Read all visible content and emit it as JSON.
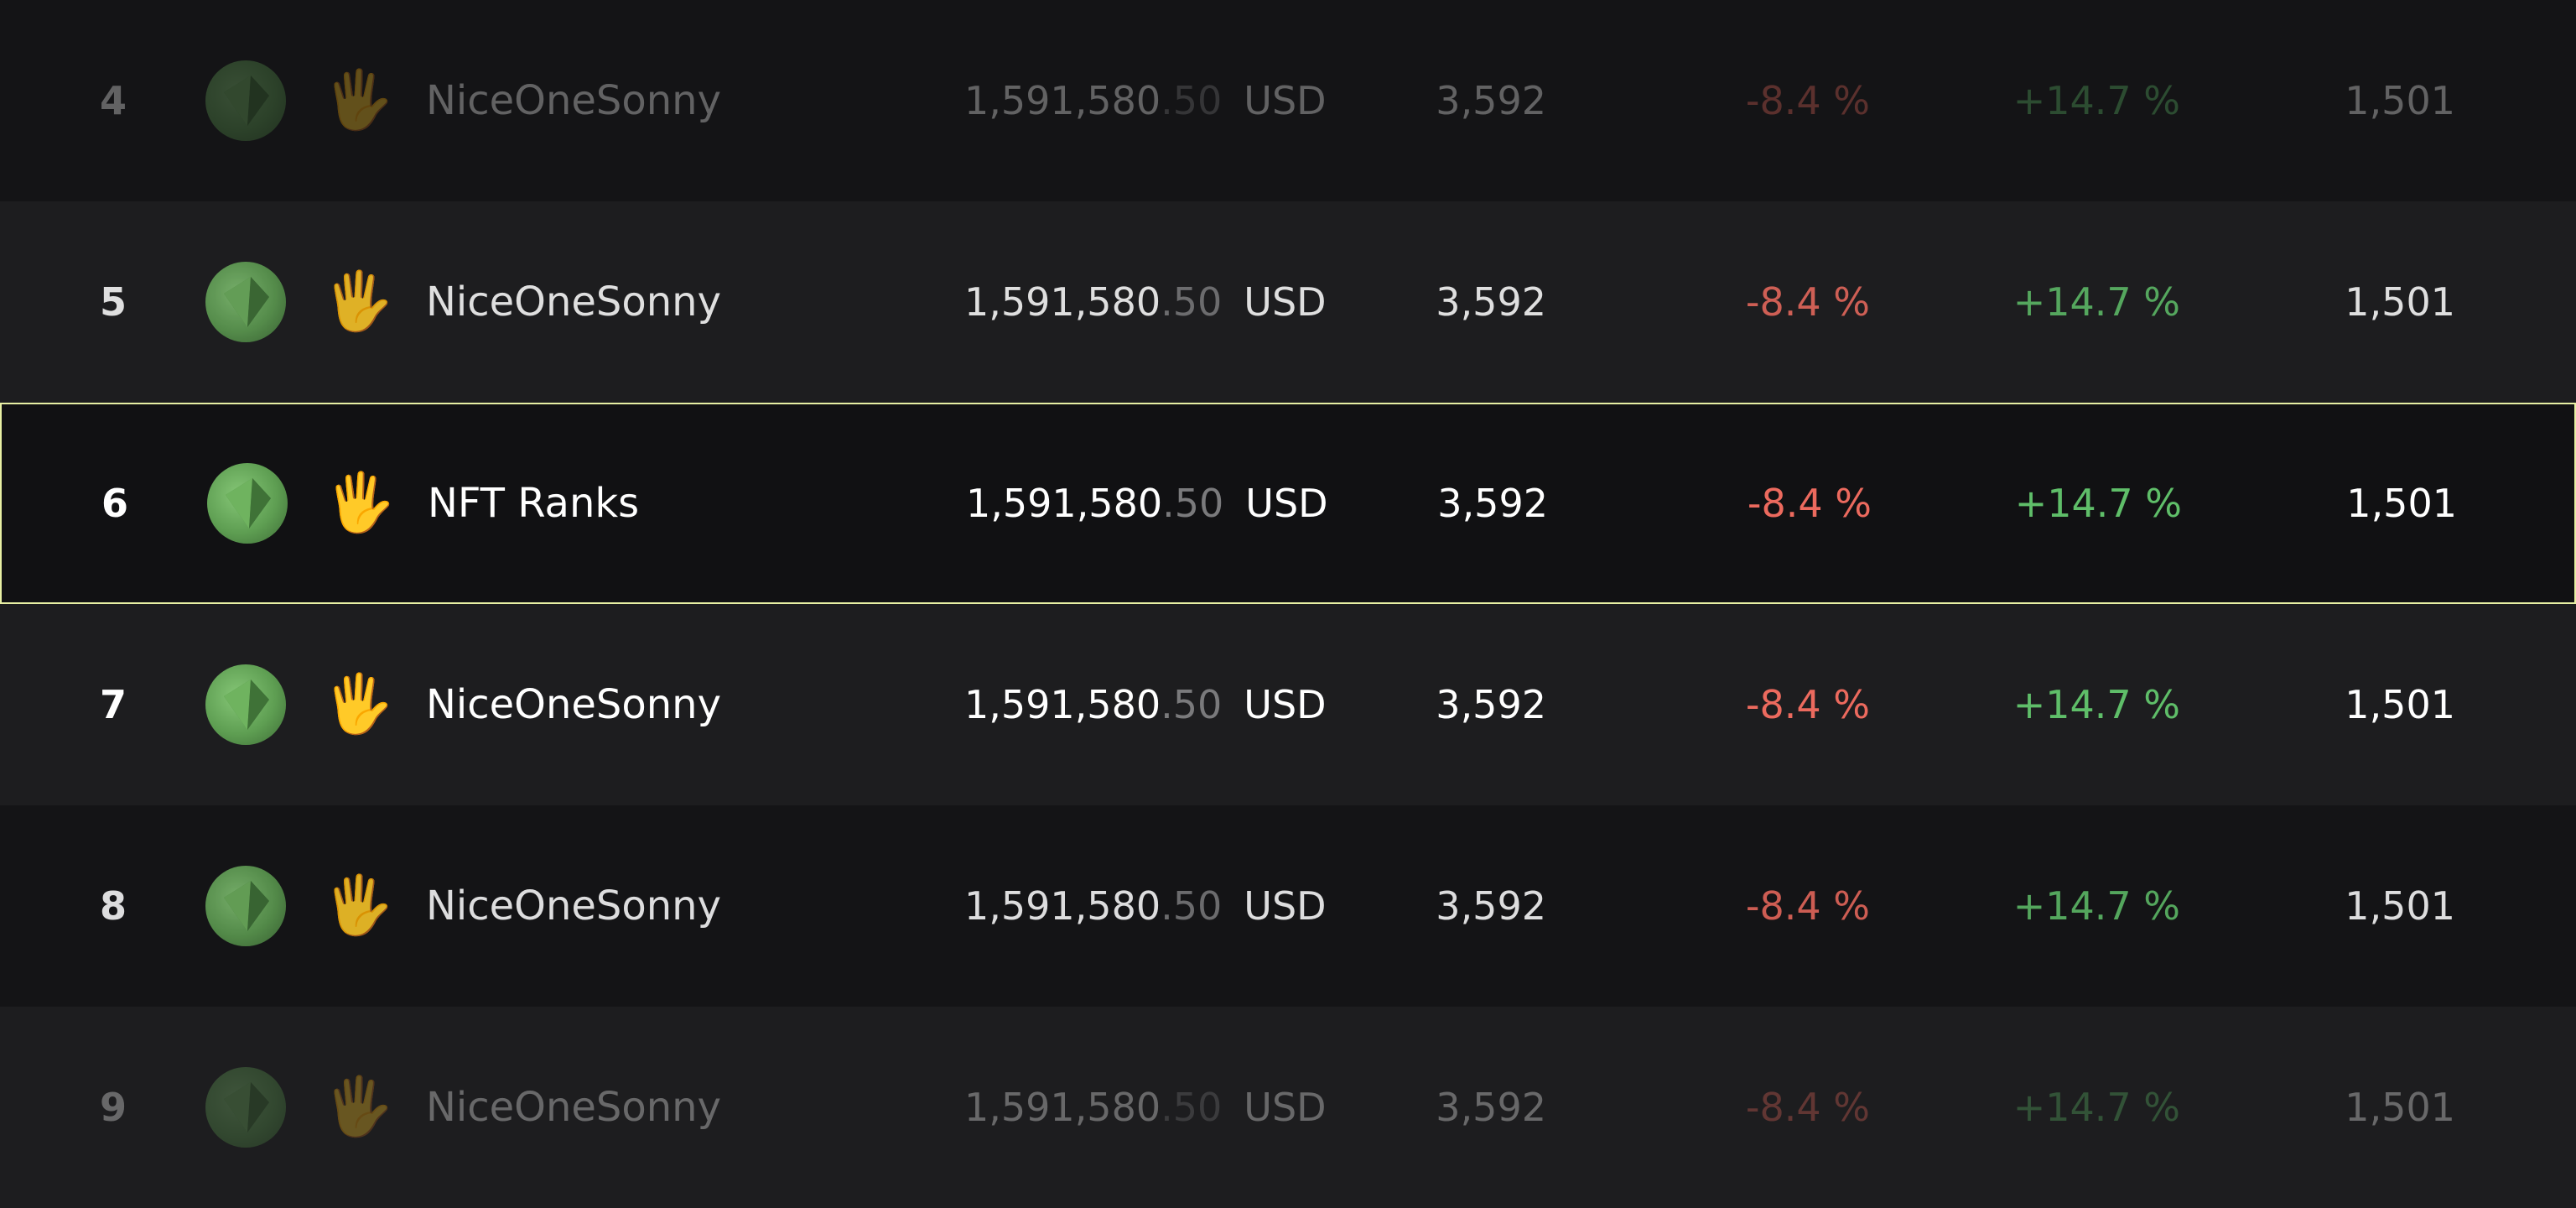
{
  "table": {
    "rows": [
      {
        "rank": "4",
        "hand_icon": "raised-hand",
        "name": "NiceOneSonny",
        "price_int": "1,591,580",
        "price_dec": ".50",
        "currency": "USD",
        "count": "3,592",
        "change_neg": "-8.4 %",
        "change_pos": "+14.7 %",
        "owners": "1,501"
      },
      {
        "rank": "5",
        "hand_icon": "raised-hand",
        "name": "NiceOneSonny",
        "price_int": "1,591,580",
        "price_dec": ".50",
        "currency": "USD",
        "count": "3,592",
        "change_neg": "-8.4 %",
        "change_pos": "+14.7 %",
        "owners": "1,501"
      },
      {
        "rank": "6",
        "hand_icon": "raised-hand",
        "name": "NFT Ranks",
        "price_int": "1,591,580",
        "price_dec": ".50",
        "currency": "USD",
        "count": "3,592",
        "change_neg": "-8.4 %",
        "change_pos": "+14.7 %",
        "owners": "1,501"
      },
      {
        "rank": "7",
        "hand_icon": "raised-hand",
        "name": "NiceOneSonny",
        "price_int": "1,591,580",
        "price_dec": ".50",
        "currency": "USD",
        "count": "3,592",
        "change_neg": "-8.4 %",
        "change_pos": "+14.7 %",
        "owners": "1,501"
      },
      {
        "rank": "8",
        "hand_icon": "raised-hand",
        "name": "NiceOneSonny",
        "price_int": "1,591,580",
        "price_dec": ".50",
        "currency": "USD",
        "count": "3,592",
        "change_neg": "-8.4 %",
        "change_pos": "+14.7 %",
        "owners": "1,501"
      },
      {
        "rank": "9",
        "hand_icon": "raised-hand",
        "name": "NiceOneSonny",
        "price_int": "1,591,580",
        "price_dec": ".50",
        "currency": "USD",
        "count": "3,592",
        "change_neg": "-8.4 %",
        "change_pos": "+14.7 %",
        "owners": "1,501"
      }
    ]
  },
  "colors": {
    "negative": "#ec6a5e",
    "positive": "#5fbe69",
    "selected_border": "#e8f0a4",
    "background": "#141416"
  }
}
